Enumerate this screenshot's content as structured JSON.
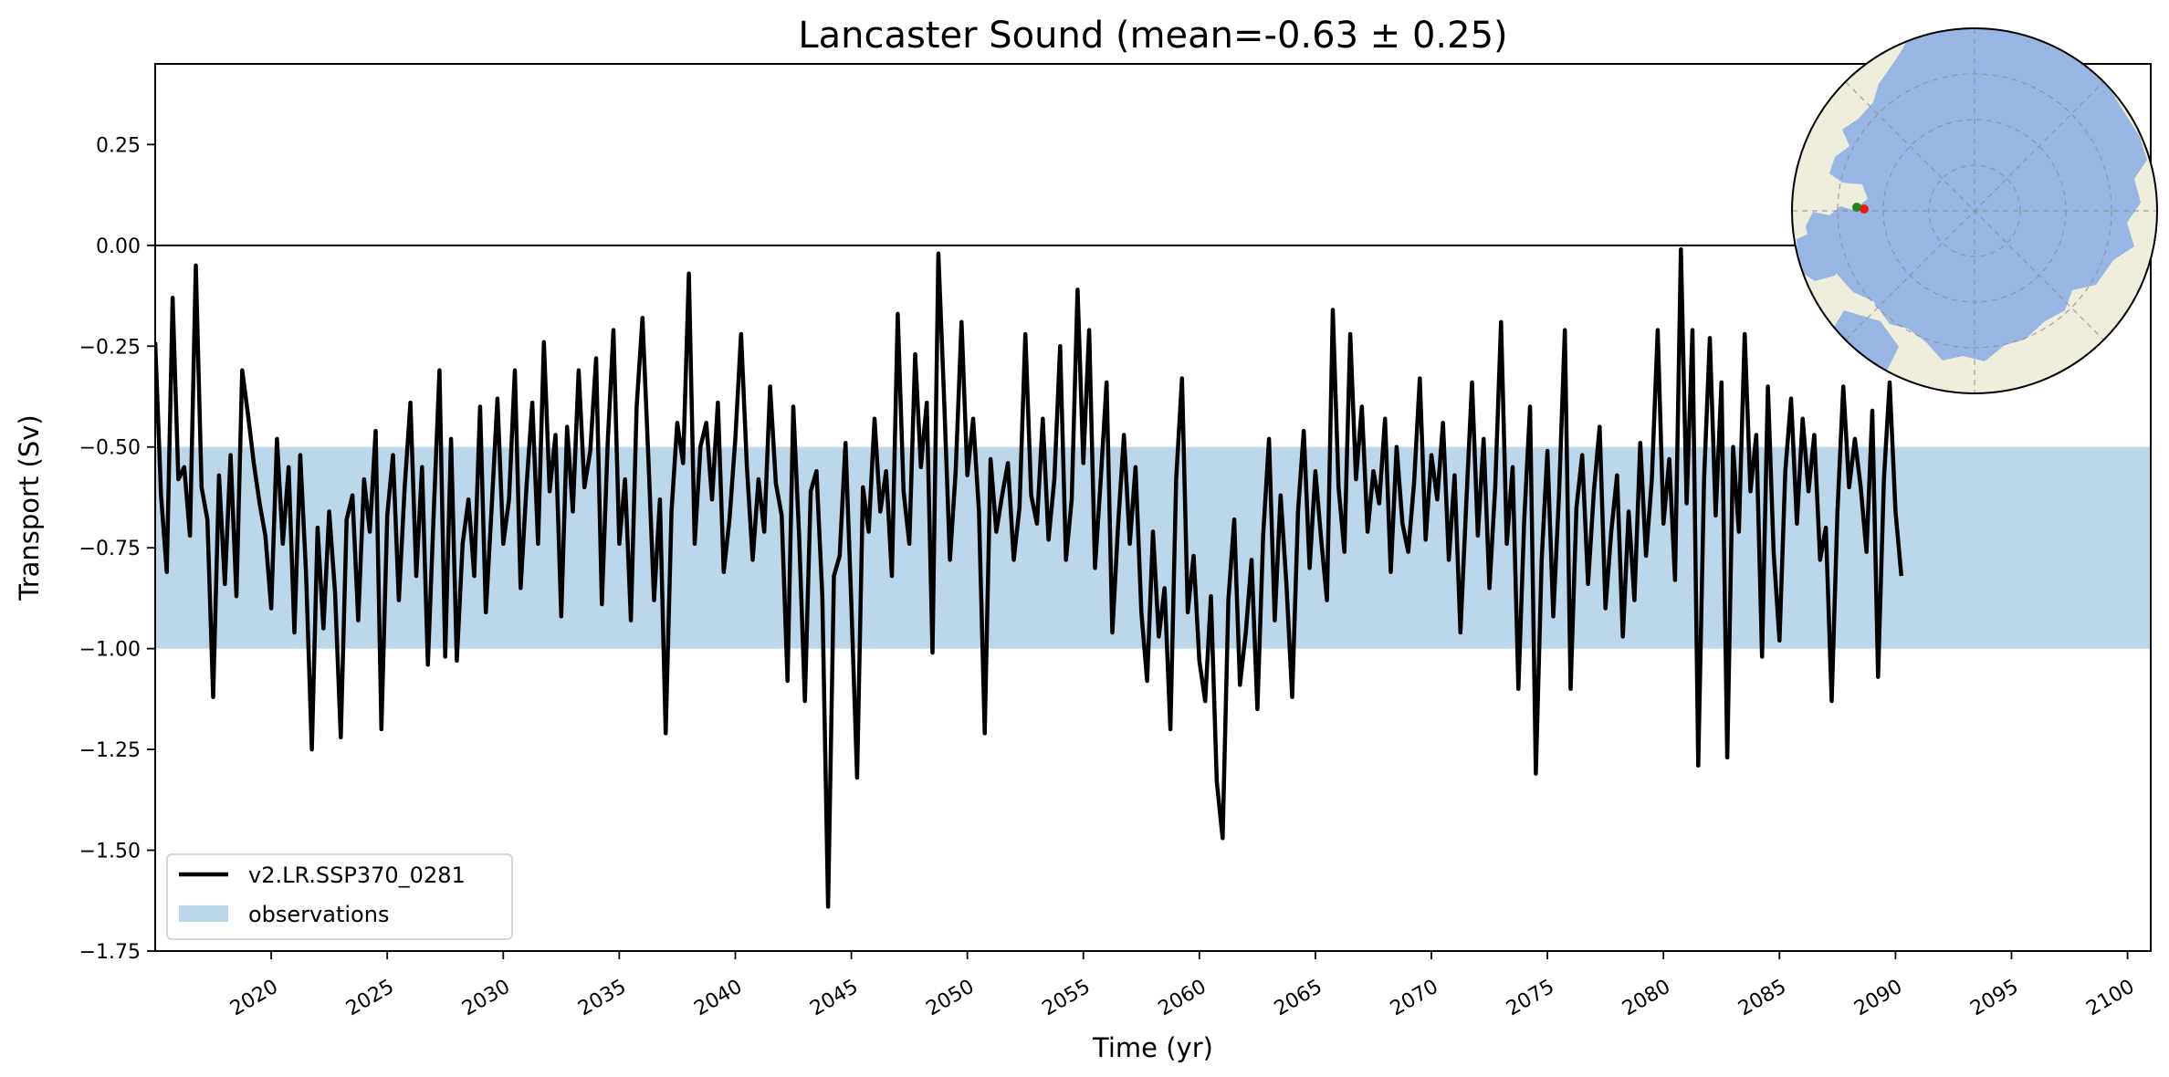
{
  "chart_data": {
    "type": "line",
    "title": "Lancaster Sound (mean=-0.63 ± 0.25)",
    "xlabel": "Time (yr)",
    "ylabel": "Transport (Sv)",
    "xlim": [
      2015.0,
      2101.0
    ],
    "ylim": [
      -1.75,
      0.45
    ],
    "xticks": [
      2020,
      2025,
      2030,
      2035,
      2040,
      2045,
      2050,
      2055,
      2060,
      2065,
      2070,
      2075,
      2080,
      2085,
      2090,
      2095,
      2100
    ],
    "yticks": [
      0.25,
      0.0,
      -0.25,
      -0.5,
      -0.75,
      -1.0,
      -1.25,
      -1.5,
      -1.75
    ],
    "ytick_labels": [
      "0.25",
      "0.00",
      "−0.25",
      "−0.50",
      "−0.75",
      "−1.00",
      "−1.25",
      "−1.50",
      "−1.75"
    ],
    "zero_line": 0.0,
    "observations_band": {
      "name": "observations",
      "ymin": -1.0,
      "ymax": -0.5,
      "color": "#bcd6ea"
    },
    "series": [
      {
        "name": "v2.LR.SSP370_0281",
        "color": "#000000",
        "x_start": 2015.0,
        "x_step": 0.25,
        "values": [
          -0.24,
          -0.62,
          -0.81,
          -0.13,
          -0.58,
          -0.55,
          -0.72,
          -0.05,
          -0.6,
          -0.68,
          -1.12,
          -0.57,
          -0.84,
          -0.52,
          -0.87,
          -0.31,
          -0.42,
          -0.54,
          -0.64,
          -0.72,
          -0.9,
          -0.48,
          -0.74,
          -0.55,
          -0.96,
          -0.52,
          -0.81,
          -1.25,
          -0.7,
          -0.95,
          -0.66,
          -0.86,
          -1.22,
          -0.68,
          -0.62,
          -0.93,
          -0.58,
          -0.71,
          -0.46,
          -1.2,
          -0.67,
          -0.52,
          -0.88,
          -0.6,
          -0.39,
          -0.82,
          -0.55,
          -1.04,
          -0.67,
          -0.31,
          -1.02,
          -0.48,
          -1.03,
          -0.74,
          -0.63,
          -0.82,
          -0.4,
          -0.91,
          -0.65,
          -0.38,
          -0.74,
          -0.63,
          -0.31,
          -0.85,
          -0.6,
          -0.39,
          -0.74,
          -0.24,
          -0.61,
          -0.47,
          -0.92,
          -0.45,
          -0.66,
          -0.31,
          -0.6,
          -0.51,
          -0.28,
          -0.89,
          -0.49,
          -0.21,
          -0.74,
          -0.58,
          -0.93,
          -0.4,
          -0.18,
          -0.52,
          -0.88,
          -0.63,
          -1.21,
          -0.66,
          -0.44,
          -0.54,
          -0.07,
          -0.74,
          -0.5,
          -0.44,
          -0.63,
          -0.39,
          -0.81,
          -0.68,
          -0.48,
          -0.22,
          -0.55,
          -0.78,
          -0.58,
          -0.71,
          -0.35,
          -0.59,
          -0.67,
          -1.08,
          -0.4,
          -0.72,
          -1.13,
          -0.61,
          -0.56,
          -0.87,
          -1.64,
          -0.82,
          -0.77,
          -0.49,
          -0.89,
          -1.32,
          -0.6,
          -0.71,
          -0.43,
          -0.66,
          -0.56,
          -0.82,
          -0.17,
          -0.61,
          -0.74,
          -0.27,
          -0.55,
          -0.39,
          -1.01,
          -0.02,
          -0.38,
          -0.78,
          -0.56,
          -0.19,
          -0.57,
          -0.43,
          -0.66,
          -1.21,
          -0.53,
          -0.71,
          -0.62,
          -0.54,
          -0.78,
          -0.65,
          -0.22,
          -0.62,
          -0.69,
          -0.43,
          -0.73,
          -0.58,
          -0.25,
          -0.78,
          -0.63,
          -0.11,
          -0.54,
          -0.21,
          -0.8,
          -0.58,
          -0.34,
          -0.96,
          -0.69,
          -0.47,
          -0.74,
          -0.55,
          -0.91,
          -1.08,
          -0.71,
          -0.97,
          -0.85,
          -1.2,
          -0.58,
          -0.33,
          -0.91,
          -0.77,
          -1.03,
          -1.13,
          -0.87,
          -1.33,
          -1.47,
          -0.88,
          -0.68,
          -1.09,
          -0.96,
          -0.78,
          -1.15,
          -0.72,
          -0.48,
          -0.93,
          -0.62,
          -0.84,
          -1.12,
          -0.66,
          -0.46,
          -0.8,
          -0.56,
          -0.73,
          -0.88,
          -0.16,
          -0.6,
          -0.76,
          -0.22,
          -0.58,
          -0.4,
          -0.71,
          -0.56,
          -0.64,
          -0.43,
          -0.81,
          -0.5,
          -0.69,
          -0.76,
          -0.59,
          -0.33,
          -0.73,
          -0.52,
          -0.63,
          -0.44,
          -0.78,
          -0.57,
          -0.96,
          -0.64,
          -0.34,
          -0.72,
          -0.48,
          -0.85,
          -0.6,
          -0.19,
          -0.74,
          -0.55,
          -1.1,
          -0.68,
          -0.4,
          -1.31,
          -0.78,
          -0.51,
          -0.92,
          -0.62,
          -0.21,
          -1.1,
          -0.65,
          -0.52,
          -0.84,
          -0.61,
          -0.45,
          -0.9,
          -0.71,
          -0.57,
          -0.97,
          -0.66,
          -0.88,
          -0.49,
          -0.77,
          -0.58,
          -0.21,
          -0.69,
          -0.53,
          -0.83,
          -0.01,
          -0.64,
          -0.21,
          -1.29,
          -0.58,
          -0.23,
          -0.67,
          -0.34,
          -1.27,
          -0.5,
          -0.71,
          -0.22,
          -0.61,
          -0.47,
          -1.02,
          -0.35,
          -0.76,
          -0.98,
          -0.56,
          -0.38,
          -0.69,
          -0.43,
          -0.61,
          -0.47,
          -0.78,
          -0.7,
          -1.13,
          -0.66,
          -0.35,
          -0.6,
          -0.48,
          -0.6,
          -0.76,
          -0.41,
          -1.07,
          -0.58,
          -0.34,
          -0.66,
          -0.82
        ]
      }
    ],
    "legend": {
      "placement": "lower-left",
      "entries": [
        {
          "label": "v2.LR.SSP370_0281",
          "kind": "line",
          "color": "#000000"
        },
        {
          "label": "observations",
          "kind": "patch",
          "color": "#bcd6ea"
        }
      ]
    },
    "inset_map": {
      "kind": "north-polar-stereographic",
      "ocean_color": "#97b6e3",
      "land_color": "#efeddc",
      "markers": [
        {
          "name": "section-start",
          "color": "#1a8a1a"
        },
        {
          "name": "section-end",
          "color": "#e0201a"
        }
      ]
    }
  }
}
